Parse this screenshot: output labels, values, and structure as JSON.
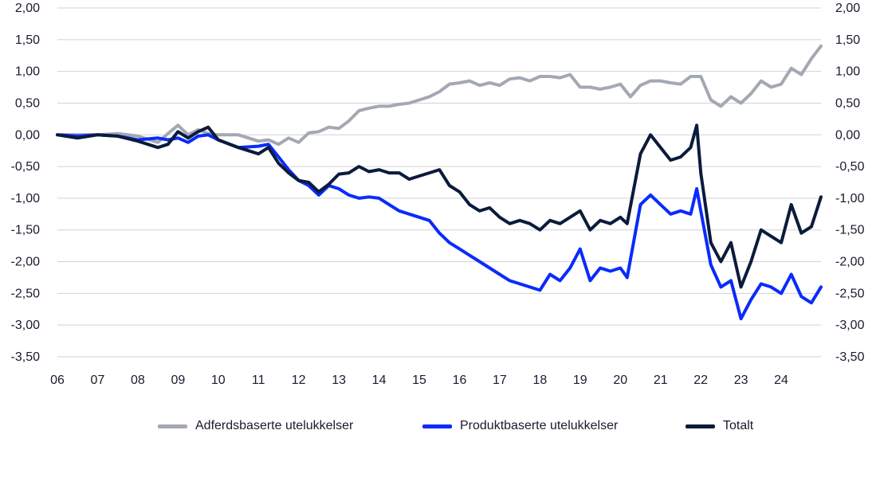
{
  "chart_data": {
    "type": "line",
    "title": "",
    "xlabel": "",
    "ylabel": "",
    "ylim": [
      -3.5,
      2.0
    ],
    "grid": true,
    "legend_position": "bottom",
    "x_tick_labels": [
      "06",
      "07",
      "08",
      "09",
      "10",
      "11",
      "12",
      "13",
      "14",
      "15",
      "16",
      "17",
      "18",
      "19",
      "20",
      "21",
      "22",
      "23",
      "24"
    ],
    "y_tick_labels": [
      "2,00",
      "1,50",
      "1,00",
      "0,50",
      "0,00",
      "-0,50",
      "-1,00",
      "-1,50",
      "-2,00",
      "-2,50",
      "-3,00",
      "-3,50"
    ],
    "y_ticks": [
      2.0,
      1.5,
      1.0,
      0.5,
      0.0,
      -0.5,
      -1.0,
      -1.5,
      -2.0,
      -2.5,
      -3.0,
      -3.5
    ],
    "x_domain": [
      2006,
      2024.99
    ],
    "series": [
      {
        "name": "Adferdsbaserte utelukkelser",
        "color": "#a3a8b3",
        "x": [
          2006.0,
          2006.5,
          2007.0,
          2007.5,
          2008.0,
          2008.5,
          2008.75,
          2009.0,
          2009.25,
          2009.5,
          2009.75,
          2010.0,
          2010.5,
          2011.0,
          2011.25,
          2011.5,
          2011.75,
          2012.0,
          2012.25,
          2012.5,
          2012.75,
          2013.0,
          2013.25,
          2013.5,
          2013.75,
          2014.0,
          2014.25,
          2014.5,
          2014.75,
          2015.0,
          2015.25,
          2015.5,
          2015.75,
          2016.0,
          2016.25,
          2016.5,
          2016.75,
          2017.0,
          2017.25,
          2017.5,
          2017.75,
          2018.0,
          2018.25,
          2018.5,
          2018.75,
          2019.0,
          2019.25,
          2019.5,
          2019.75,
          2020.0,
          2020.25,
          2020.5,
          2020.75,
          2021.0,
          2021.25,
          2021.5,
          2021.75,
          2022.0,
          2022.25,
          2022.5,
          2022.75,
          2023.0,
          2023.25,
          2023.5,
          2023.75,
          2024.0,
          2024.25,
          2024.5,
          2024.75,
          2024.99
        ],
        "values": [
          0.0,
          0.0,
          0.0,
          0.02,
          -0.02,
          -0.12,
          0.02,
          0.15,
          0.0,
          0.08,
          0.02,
          0.0,
          0.0,
          -0.1,
          -0.08,
          -0.15,
          -0.05,
          -0.12,
          0.03,
          0.05,
          0.12,
          0.1,
          0.22,
          0.38,
          0.42,
          0.45,
          0.45,
          0.48,
          0.5,
          0.55,
          0.6,
          0.68,
          0.8,
          0.82,
          0.85,
          0.78,
          0.82,
          0.78,
          0.88,
          0.9,
          0.85,
          0.92,
          0.92,
          0.9,
          0.95,
          0.75,
          0.75,
          0.72,
          0.75,
          0.8,
          0.6,
          0.78,
          0.85,
          0.85,
          0.82,
          0.8,
          0.92,
          0.92,
          0.55,
          0.45,
          0.6,
          0.5,
          0.65,
          0.85,
          0.75,
          0.8,
          1.05,
          0.95,
          1.2,
          1.4
        ]
      },
      {
        "name": "Produktbaserte utelukkelser",
        "color": "#0a2bfb",
        "x": [
          2006.0,
          2006.5,
          2007.0,
          2007.5,
          2008.0,
          2008.5,
          2008.75,
          2009.0,
          2009.25,
          2009.5,
          2009.75,
          2010.0,
          2010.5,
          2011.0,
          2011.25,
          2011.5,
          2011.75,
          2012.0,
          2012.25,
          2012.5,
          2012.75,
          2013.0,
          2013.25,
          2013.5,
          2013.75,
          2014.0,
          2014.25,
          2014.5,
          2014.75,
          2015.0,
          2015.25,
          2015.5,
          2015.75,
          2016.0,
          2016.25,
          2016.5,
          2016.75,
          2017.0,
          2017.25,
          2017.5,
          2017.75,
          2018.0,
          2018.25,
          2018.5,
          2018.75,
          2019.0,
          2019.25,
          2019.5,
          2019.75,
          2020.0,
          2020.17,
          2020.5,
          2020.75,
          2021.0,
          2021.25,
          2021.5,
          2021.75,
          2021.9,
          2022.0,
          2022.25,
          2022.5,
          2022.75,
          2023.0,
          2023.25,
          2023.5,
          2023.75,
          2024.0,
          2024.25,
          2024.5,
          2024.75,
          2024.99
        ],
        "values": [
          0.0,
          -0.02,
          0.0,
          -0.02,
          -0.08,
          -0.05,
          -0.08,
          -0.05,
          -0.12,
          -0.02,
          0.0,
          -0.08,
          -0.2,
          -0.18,
          -0.15,
          -0.35,
          -0.55,
          -0.72,
          -0.8,
          -0.95,
          -0.8,
          -0.85,
          -0.95,
          -1.0,
          -0.98,
          -1.0,
          -1.1,
          -1.2,
          -1.25,
          -1.3,
          -1.35,
          -1.55,
          -1.7,
          -1.8,
          -1.9,
          -2.0,
          -2.1,
          -2.2,
          -2.3,
          -2.35,
          -2.4,
          -2.45,
          -2.2,
          -2.3,
          -2.1,
          -1.8,
          -2.3,
          -2.1,
          -2.15,
          -2.1,
          -2.25,
          -1.1,
          -0.95,
          -1.1,
          -1.25,
          -1.2,
          -1.25,
          -0.85,
          -1.2,
          -2.05,
          -2.4,
          -2.3,
          -2.9,
          -2.6,
          -2.35,
          -2.4,
          -2.5,
          -2.2,
          -2.55,
          -2.65,
          -2.4
        ]
      },
      {
        "name": "Totalt",
        "color": "#0b1b3b",
        "x": [
          2006.0,
          2006.5,
          2007.0,
          2007.5,
          2008.0,
          2008.5,
          2008.75,
          2009.0,
          2009.25,
          2009.5,
          2009.75,
          2010.0,
          2010.5,
          2011.0,
          2011.25,
          2011.5,
          2011.75,
          2012.0,
          2012.25,
          2012.5,
          2012.75,
          2013.0,
          2013.25,
          2013.5,
          2013.75,
          2014.0,
          2014.25,
          2014.5,
          2014.75,
          2015.0,
          2015.25,
          2015.5,
          2015.75,
          2016.0,
          2016.25,
          2016.5,
          2016.75,
          2017.0,
          2017.25,
          2017.5,
          2017.75,
          2018.0,
          2018.25,
          2018.5,
          2018.75,
          2019.0,
          2019.25,
          2019.5,
          2019.75,
          2020.0,
          2020.17,
          2020.5,
          2020.75,
          2021.0,
          2021.25,
          2021.5,
          2021.75,
          2021.9,
          2022.0,
          2022.25,
          2022.5,
          2022.75,
          2023.0,
          2023.25,
          2023.5,
          2023.75,
          2024.0,
          2024.25,
          2024.5,
          2024.75,
          2024.99
        ],
        "values": [
          0.0,
          -0.05,
          0.0,
          -0.02,
          -0.1,
          -0.2,
          -0.15,
          0.05,
          -0.05,
          0.05,
          0.12,
          -0.08,
          -0.2,
          -0.3,
          -0.2,
          -0.45,
          -0.6,
          -0.72,
          -0.75,
          -0.9,
          -0.78,
          -0.62,
          -0.6,
          -0.5,
          -0.58,
          -0.55,
          -0.6,
          -0.6,
          -0.7,
          -0.65,
          -0.6,
          -0.55,
          -0.8,
          -0.9,
          -1.1,
          -1.2,
          -1.15,
          -1.3,
          -1.4,
          -1.35,
          -1.4,
          -1.5,
          -1.35,
          -1.4,
          -1.3,
          -1.2,
          -1.5,
          -1.35,
          -1.4,
          -1.3,
          -1.4,
          -0.3,
          0.0,
          -0.2,
          -0.4,
          -0.35,
          -0.2,
          0.15,
          -0.6,
          -1.7,
          -2.0,
          -1.7,
          -2.4,
          -2.0,
          -1.5,
          -1.6,
          -1.7,
          -1.1,
          -1.55,
          -1.45,
          -0.98
        ]
      }
    ]
  }
}
